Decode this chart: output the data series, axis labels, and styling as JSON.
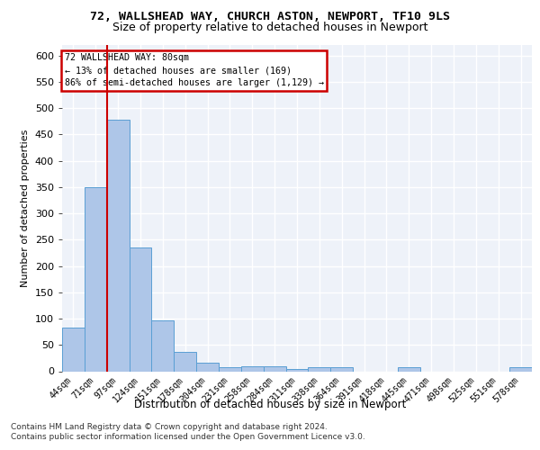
{
  "title1": "72, WALLSHEAD WAY, CHURCH ASTON, NEWPORT, TF10 9LS",
  "title2": "Size of property relative to detached houses in Newport",
  "xlabel": "Distribution of detached houses by size in Newport",
  "ylabel": "Number of detached properties",
  "categories": [
    "44sqm",
    "71sqm",
    "97sqm",
    "124sqm",
    "151sqm",
    "178sqm",
    "204sqm",
    "231sqm",
    "258sqm",
    "284sqm",
    "311sqm",
    "338sqm",
    "364sqm",
    "391sqm",
    "418sqm",
    "445sqm",
    "471sqm",
    "498sqm",
    "525sqm",
    "551sqm",
    "578sqm"
  ],
  "values": [
    83,
    350,
    478,
    235,
    97,
    37,
    17,
    8,
    9,
    9,
    5,
    8,
    8,
    0,
    0,
    7,
    0,
    0,
    0,
    0,
    7
  ],
  "bar_color": "#aec6e8",
  "bar_edgecolor": "#5a9fd4",
  "property_line_label": "72 WALLSHEAD WAY: 80sqm",
  "annotation_line1": "← 13% of detached houses are smaller (169)",
  "annotation_line2": "86% of semi-detached houses are larger (1,129) →",
  "annotation_box_edgecolor": "#cc0000",
  "annotation_box_facecolor": "#ffffff",
  "vline_color": "#cc0000",
  "ylim": [
    0,
    620
  ],
  "yticks": [
    0,
    50,
    100,
    150,
    200,
    250,
    300,
    350,
    400,
    450,
    500,
    550,
    600
  ],
  "background_color": "#eef2f9",
  "grid_color": "#ffffff",
  "footer1": "Contains HM Land Registry data © Crown copyright and database right 2024.",
  "footer2": "Contains public sector information licensed under the Open Government Licence v3.0."
}
